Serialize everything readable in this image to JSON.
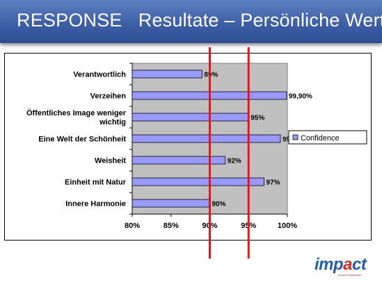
{
  "title": "RESPONSE   Resultate – Persönliche Werte",
  "chart_data": {
    "type": "bar",
    "orientation": "horizontal",
    "categories": [
      "Verantwortlich",
      "Verzeihen",
      "Öffentliches Image weniger wichtig",
      "Eine Welt der Schönheit",
      "Weisheit",
      "Einheit mit Natur",
      "Innere Harmonie"
    ],
    "category_lines": [
      [
        "Verantwortlich"
      ],
      [
        "Verzeihen"
      ],
      [
        "Öffentliches Image weniger",
        "wichtig"
      ],
      [
        "Eine Welt der Schönheit"
      ],
      [
        "Weisheit"
      ],
      [
        "Einheit mit Natur"
      ],
      [
        "Innere Harmonie"
      ]
    ],
    "series": [
      {
        "name": "Confidence",
        "values": [
          89,
          99.9,
          95,
          99.1,
          92,
          97,
          90
        ]
      }
    ],
    "data_labels": [
      "89%",
      "99,90%",
      "95%",
      "99,10%",
      "92%",
      "97%",
      "90%"
    ],
    "xlim": [
      80,
      100
    ],
    "xticks": [
      80,
      85,
      90,
      95,
      100
    ],
    "xtick_labels": [
      "80%",
      "85%",
      "90%",
      "95%",
      "100%"
    ],
    "reference_lines": [
      90,
      95
    ],
    "legend_position": "right",
    "bar_color": "#9999ff",
    "plot_background": "#c0c0c0",
    "reference_line_color": "#e8141c"
  },
  "logo": {
    "text": "impact",
    "tagline": "unsere Ergebnisse"
  }
}
